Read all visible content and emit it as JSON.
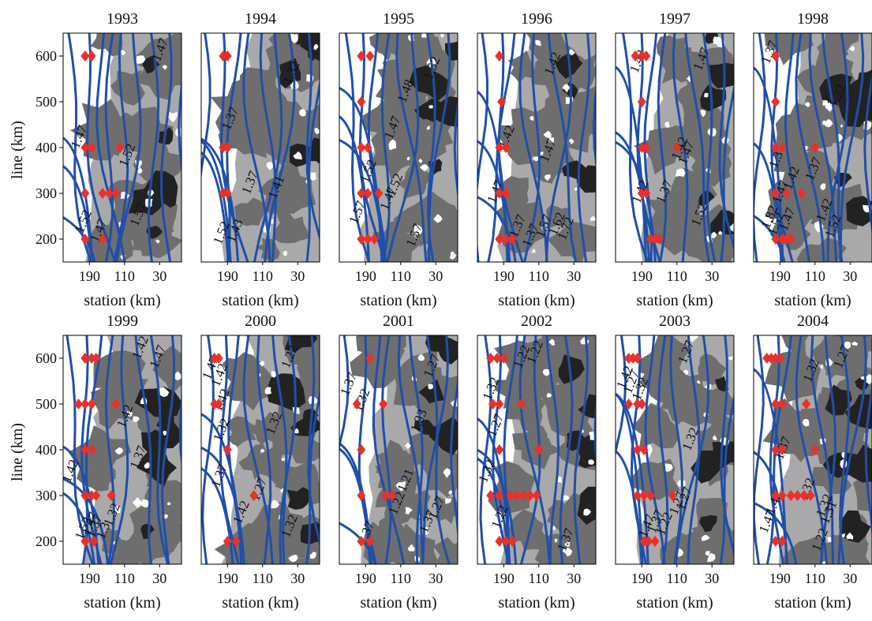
{
  "figure": {
    "row_ylabel": "line (km)",
    "panel_xlabel": "station (km)"
  },
  "chart_data": {
    "type": "contour",
    "panel_years": [
      "1993",
      "1994",
      "1995",
      "1996",
      "1997",
      "1998",
      "1999",
      "2000",
      "2001",
      "2002",
      "2003",
      "2004"
    ],
    "x_axis": {
      "label": "station (km)",
      "tick_labels": [
        "190",
        "110",
        "30"
      ],
      "tick_values": [
        190,
        110,
        30
      ],
      "lim": [
        250,
        -20
      ],
      "reversed": true
    },
    "y_axis": {
      "label": "line (km)",
      "tick_labels": [
        "200",
        "300",
        "400",
        "500",
        "600"
      ],
      "tick_values": [
        200,
        300,
        400,
        500,
        600
      ],
      "lim": [
        150,
        650
      ]
    },
    "colors": {
      "contour": "#1f4faa",
      "marker": "#e8312a",
      "shade_light": "#a9a9a9",
      "shade_mid": "#6e6e6e",
      "shade_dark": "#222222"
    },
    "panels": [
      {
        "year": "1993",
        "stations": [
          [
            200,
            600
          ],
          [
            185,
            600
          ],
          [
            200,
            400
          ],
          [
            185,
            400
          ],
          [
            120,
            400
          ],
          [
            200,
            300
          ],
          [
            160,
            300
          ],
          [
            145,
            300
          ],
          [
            130,
            300
          ],
          [
            200,
            200
          ],
          [
            160,
            200
          ]
        ],
        "contour_labels": [
          [
            "1.47",
            205,
            420
          ],
          [
            "1.52",
            95,
            380
          ],
          [
            "1.52",
            195,
            235
          ],
          [
            "1.47",
            160,
            215
          ],
          [
            "1.47",
            20,
            610
          ],
          [
            "1.57",
            70,
            250
          ]
        ]
      },
      {
        "year": "1994",
        "stations": [
          [
            200,
            600
          ],
          [
            190,
            600
          ],
          [
            200,
            400
          ],
          [
            190,
            400
          ],
          [
            200,
            300
          ],
          [
            190,
            300
          ]
        ],
        "contour_labels": [
          [
            "1.37",
            175,
            460
          ],
          [
            "1.37",
            130,
            320
          ],
          [
            "1.32",
            35,
            560
          ],
          [
            "1.41",
            70,
            310
          ],
          [
            "1.43",
            165,
            215
          ],
          [
            "1.52",
            195,
            210
          ]
        ]
      },
      {
        "year": "1995",
        "stations": [
          [
            200,
            600
          ],
          [
            180,
            600
          ],
          [
            200,
            500
          ],
          [
            200,
            400
          ],
          [
            185,
            400
          ],
          [
            200,
            300
          ],
          [
            185,
            300
          ],
          [
            160,
            300
          ],
          [
            200,
            200
          ],
          [
            185,
            200
          ],
          [
            170,
            200
          ]
        ],
        "contour_labels": [
          [
            "1.47",
            120,
            440
          ],
          [
            "1.48",
            90,
            520
          ],
          [
            "1.52",
            175,
            345
          ],
          [
            "1.52",
            115,
            315
          ],
          [
            "1.47",
            130,
            285
          ],
          [
            "1.57",
            200,
            255
          ],
          [
            "1.57",
            70,
            205
          ],
          [
            "1.52",
            30,
            570
          ]
        ]
      },
      {
        "year": "1996",
        "stations": [
          [
            200,
            600
          ],
          [
            195,
            500
          ],
          [
            200,
            400
          ],
          [
            185,
            400
          ],
          [
            200,
            300
          ],
          [
            185,
            300
          ],
          [
            200,
            200
          ],
          [
            185,
            200
          ],
          [
            170,
            200
          ]
        ],
        "contour_labels": [
          [
            "1.42",
            175,
            420
          ],
          [
            "1.47",
            200,
            300
          ],
          [
            "1.37",
            150,
            225
          ],
          [
            "1.37",
            120,
            205
          ],
          [
            "1.47",
            80,
            390
          ],
          [
            "1.42",
            70,
            580
          ],
          [
            "1.57",
            90,
            225
          ],
          [
            "1.62",
            60,
            230
          ],
          [
            "1.72",
            40,
            220
          ]
        ]
      },
      {
        "year": "1997",
        "stations": [
          [
            205,
            600
          ],
          [
            190,
            600
          ],
          [
            180,
            600
          ],
          [
            190,
            500
          ],
          [
            190,
            400
          ],
          [
            180,
            400
          ],
          [
            110,
            400
          ],
          [
            190,
            300
          ],
          [
            180,
            300
          ],
          [
            170,
            200
          ],
          [
            160,
            200
          ],
          [
            150,
            200
          ]
        ],
        "contour_labels": [
          [
            "1.42",
            190,
            585
          ],
          [
            "1.47",
            45,
            590
          ],
          [
            "1.42",
            95,
            395
          ],
          [
            "1.47",
            80,
            385
          ],
          [
            "1.37",
            130,
            300
          ],
          [
            "1.42",
            185,
            300
          ],
          [
            "1.52",
            50,
            250
          ]
        ]
      },
      {
        "year": "1998",
        "stations": [
          [
            200,
            600
          ],
          [
            200,
            500
          ],
          [
            200,
            400
          ],
          [
            185,
            400
          ],
          [
            110,
            400
          ],
          [
            200,
            300
          ],
          [
            175,
            300
          ],
          [
            140,
            300
          ],
          [
            200,
            200
          ],
          [
            185,
            200
          ],
          [
            175,
            200
          ],
          [
            165,
            200
          ]
        ],
        "contour_labels": [
          [
            "1.37",
            205,
            605
          ],
          [
            "1.37",
            105,
            350
          ],
          [
            "1.3",
            190,
            370
          ],
          [
            "1.42",
            155,
            330
          ],
          [
            "1.47",
            180,
            300
          ],
          [
            "1.82",
            205,
            245
          ],
          [
            "1.52",
            190,
            230
          ],
          [
            "1.47",
            165,
            240
          ],
          [
            "1.42",
            80,
            260
          ],
          [
            "1.22",
            50,
            510
          ],
          [
            "1.52",
            60,
            225
          ]
        ]
      },
      {
        "year": "1999",
        "stations": [
          [
            200,
            600
          ],
          [
            185,
            600
          ],
          [
            175,
            600
          ],
          [
            215,
            500
          ],
          [
            200,
            500
          ],
          [
            185,
            500
          ],
          [
            130,
            500
          ],
          [
            200,
            400
          ],
          [
            185,
            400
          ],
          [
            200,
            300
          ],
          [
            185,
            300
          ],
          [
            175,
            300
          ],
          [
            140,
            300
          ],
          [
            200,
            200
          ],
          [
            180,
            200
          ]
        ],
        "contour_labels": [
          [
            "1.42",
            225,
            350
          ],
          [
            "1.42",
            100,
            470
          ],
          [
            "1.42",
            65,
            620
          ],
          [
            "1.47",
            25,
            600
          ],
          [
            "1.47",
            180,
            235
          ],
          [
            "1.52",
            195,
            225
          ],
          [
            "1.37",
            170,
            230
          ],
          [
            "1.32",
            130,
            255
          ],
          [
            "1.37",
            70,
            380
          ],
          [
            "1.3",
            150,
            220
          ]
        ]
      },
      {
        "year": "2000",
        "stations": [
          [
            220,
            600
          ],
          [
            210,
            600
          ],
          [
            220,
            500
          ],
          [
            210,
            500
          ],
          [
            190,
            400
          ],
          [
            130,
            300
          ],
          [
            190,
            200
          ],
          [
            170,
            200
          ]
        ],
        "contour_labels": [
          [
            "1.47",
            220,
            575
          ],
          [
            "1.42",
            200,
            560
          ],
          [
            "1.42",
            195,
            505
          ],
          [
            "1.32",
            195,
            440
          ],
          [
            "1.37",
            200,
            340
          ],
          [
            "1.27",
            110,
            310
          ],
          [
            "1.42",
            150,
            260
          ],
          [
            "1.32",
            75,
            455
          ],
          [
            "1.22",
            40,
            600
          ],
          [
            "1.32",
            40,
            230
          ]
        ]
      },
      {
        "year": "2001",
        "stations": [
          [
            180,
            600
          ],
          [
            210,
            500
          ],
          [
            150,
            500
          ],
          [
            200,
            400
          ],
          [
            200,
            300
          ],
          [
            145,
            300
          ],
          [
            130,
            300
          ],
          [
            200,
            200
          ],
          [
            180,
            200
          ]
        ],
        "contour_labels": [
          [
            "1.37",
            220,
            540
          ],
          [
            "1.32",
            190,
            505
          ],
          [
            "1.21",
            90,
            330
          ],
          [
            "1.22",
            110,
            280
          ],
          [
            "1.37",
            180,
            215
          ],
          [
            "1.27",
            30,
            580
          ],
          [
            "1.33",
            60,
            460
          ],
          [
            "1.27",
            20,
            270
          ],
          [
            "1.37",
            40,
            240
          ]
        ]
      },
      {
        "year": "2002",
        "stations": [
          [
            220,
            600
          ],
          [
            205,
            600
          ],
          [
            190,
            600
          ],
          [
            215,
            500
          ],
          [
            200,
            500
          ],
          [
            150,
            500
          ],
          [
            200,
            400
          ],
          [
            110,
            400
          ],
          [
            220,
            300
          ],
          [
            200,
            300
          ],
          [
            175,
            300
          ],
          [
            160,
            300
          ],
          [
            145,
            300
          ],
          [
            130,
            300
          ],
          [
            115,
            300
          ],
          [
            200,
            200
          ],
          [
            185,
            200
          ],
          [
            170,
            200
          ]
        ],
        "contour_labels": [
          [
            "1.32",
            210,
            530
          ],
          [
            "1.22",
            140,
            600
          ],
          [
            "1.22",
            110,
            610
          ],
          [
            "1.27",
            200,
            450
          ],
          [
            "1.32",
            220,
            350
          ],
          [
            "1.22",
            190,
            250
          ],
          [
            "1.37",
            40,
            200
          ]
        ]
      },
      {
        "year": "2003",
        "stations": [
          [
            220,
            600
          ],
          [
            210,
            600
          ],
          [
            200,
            600
          ],
          [
            220,
            500
          ],
          [
            200,
            500
          ],
          [
            190,
            500
          ],
          [
            200,
            400
          ],
          [
            185,
            400
          ],
          [
            200,
            300
          ],
          [
            185,
            300
          ],
          [
            170,
            300
          ],
          [
            120,
            300
          ],
          [
            185,
            200
          ],
          [
            175,
            200
          ],
          [
            160,
            200
          ]
        ],
        "contour_labels": [
          [
            "1.42",
            220,
            555
          ],
          [
            "1.27",
            205,
            545
          ],
          [
            "1.32",
            185,
            530
          ],
          [
            "1.27",
            80,
            610
          ],
          [
            "1.32",
            70,
            420
          ],
          [
            "1.47",
            170,
            230
          ],
          [
            "1.37",
            150,
            240
          ],
          [
            "1.22",
            130,
            235
          ],
          [
            "1.27",
            100,
            280
          ],
          [
            "1.27",
            85,
            290
          ]
        ]
      },
      {
        "year": "2004",
        "stations": [
          [
            220,
            600
          ],
          [
            210,
            600
          ],
          [
            200,
            600
          ],
          [
            190,
            600
          ],
          [
            200,
            500
          ],
          [
            185,
            500
          ],
          [
            130,
            500
          ],
          [
            200,
            400
          ],
          [
            185,
            400
          ],
          [
            110,
            400
          ],
          [
            200,
            300
          ],
          [
            185,
            300
          ],
          [
            165,
            300
          ],
          [
            150,
            300
          ],
          [
            135,
            300
          ],
          [
            120,
            300
          ],
          [
            200,
            200
          ],
          [
            185,
            200
          ]
        ],
        "contour_labels": [
          [
            "1.32",
            110,
            570
          ],
          [
            "1.37",
            175,
            400
          ],
          [
            "1.32",
            120,
            310
          ],
          [
            "1.47",
            210,
            240
          ],
          [
            "1.42",
            195,
            280
          ],
          [
            "1.32",
            80,
            275
          ],
          [
            "1.27",
            40,
            600
          ],
          [
            "1.22",
            90,
            200
          ],
          [
            "1.31",
            70,
            260
          ]
        ]
      }
    ]
  }
}
